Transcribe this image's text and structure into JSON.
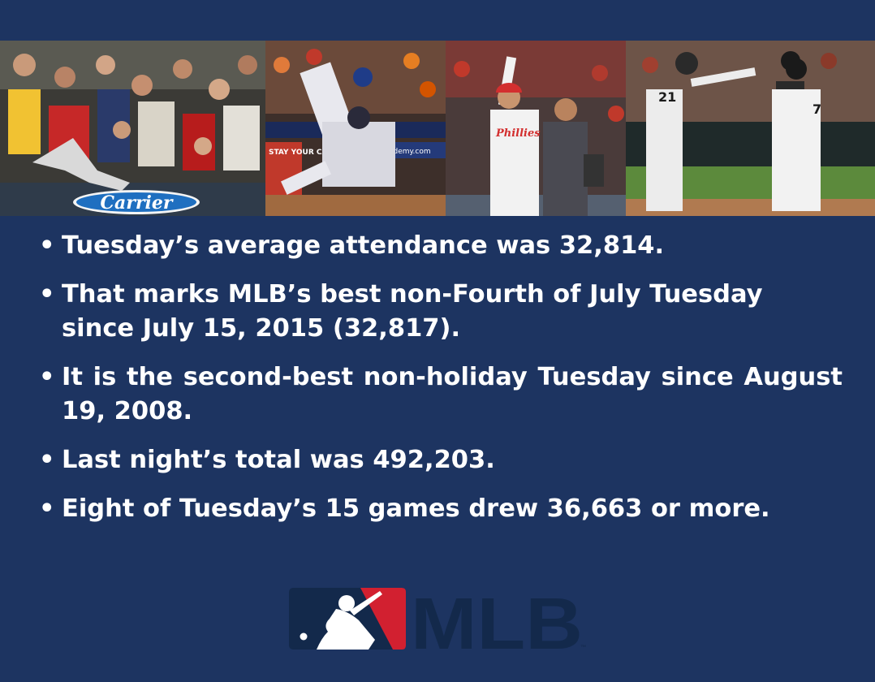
{
  "photos": [
    {
      "name": "fan-catch-photo",
      "sign_text": "Carrier"
    },
    {
      "name": "home-plate-slide-photo",
      "sign_text": "STAY YOUR CAR NUTE"
    },
    {
      "name": "phillies-celebration-photo",
      "sign_text": "Phillies"
    },
    {
      "name": "diamondbacks-coach-photo",
      "sign_text": ""
    }
  ],
  "bullets": [
    "Tuesday’s average attendance was 32,814.",
    "That marks MLB’s best non-Fourth of July Tuesday since July 15, 2015 (32,817).",
    "It is the second-best non-holiday Tuesday since August 19, 2008.",
    "Last night’s total was 492,203.",
    "Eight of Tuesday’s 15 games drew 36,663 or more."
  ],
  "logo": {
    "wordmark": "MLB",
    "tm": "™"
  },
  "colors": {
    "background": "#1d3461",
    "text": "#ffffff",
    "logo_blue": "#13294b",
    "logo_red": "#d22030"
  }
}
